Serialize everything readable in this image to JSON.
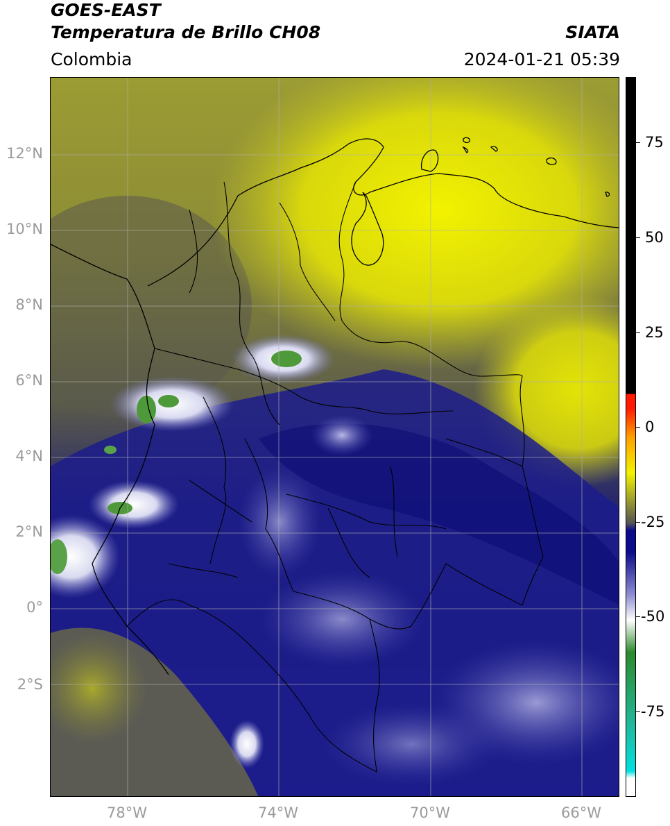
{
  "header": {
    "title_line1": "GOES-EAST",
    "title_line2": "Temperatura de Brillo CH08",
    "brand": "SIATA",
    "region": "Colombia",
    "timestamp": "2024-01-21 05:39"
  },
  "map": {
    "lat_ticks": [
      "12°N",
      "10°N",
      "8°N",
      "6°N",
      "4°N",
      "2°N",
      "0°",
      "2°S"
    ],
    "lon_ticks": [
      "78°W",
      "74°W",
      "70°W",
      "66°W"
    ]
  },
  "colorbar": {
    "ticks": [
      "75",
      "50",
      "25",
      "0",
      "-25",
      "-50",
      "-75"
    ],
    "colors": {
      "black": "#000000",
      "red": "#ff1a00",
      "orange": "#ff9f00",
      "yellow": "#f2f200",
      "olive": "#a3a32b",
      "gray": "#555555",
      "navy": "#0b0b8c",
      "periwinkle": "#8e8ed2",
      "white": "#ffffff",
      "green": "#2c8a2c",
      "teal": "#22b89a",
      "cyan": "#00e0e0"
    }
  }
}
